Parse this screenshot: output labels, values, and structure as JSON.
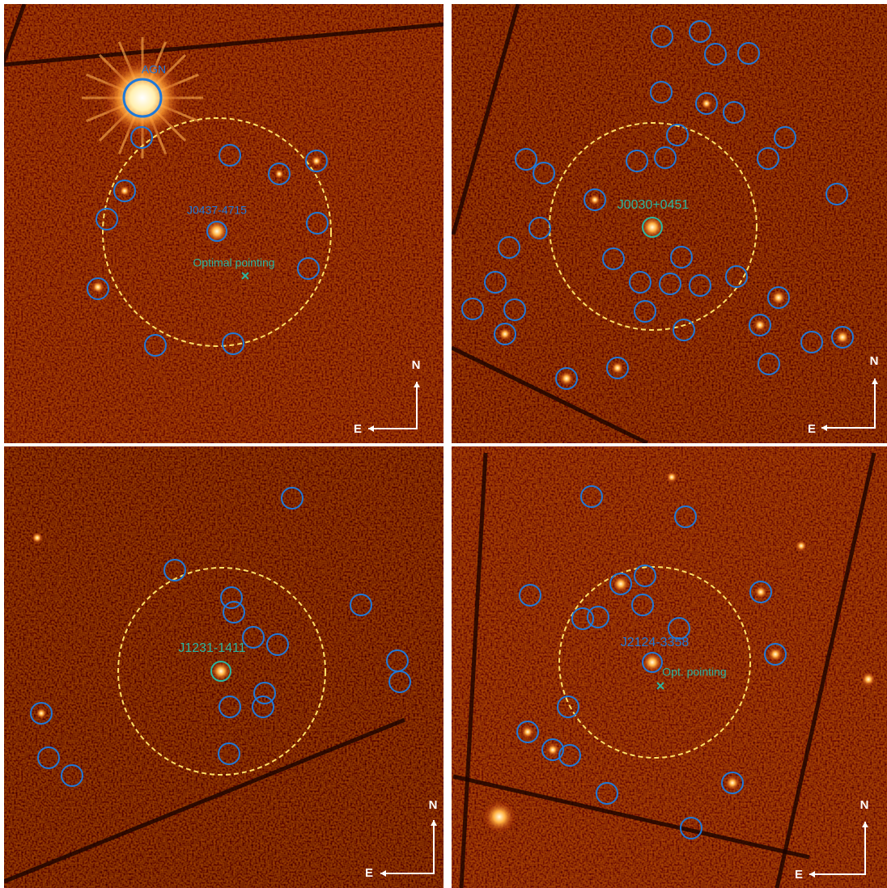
{
  "panels": [
    {
      "labels": [
        "AGN",
        "J0437-4715",
        "Optimal pointing"
      ],
      "north": "N",
      "east": "E"
    },
    {
      "labels": [
        "J0030+0451"
      ],
      "north": "N",
      "east": "E"
    },
    {
      "labels": [
        "J1231-1411"
      ],
      "north": "N",
      "east": "E"
    },
    {
      "labels": [
        "J2124-3358",
        "Opt. pointing"
      ],
      "north": "N",
      "east": "E"
    }
  ]
}
